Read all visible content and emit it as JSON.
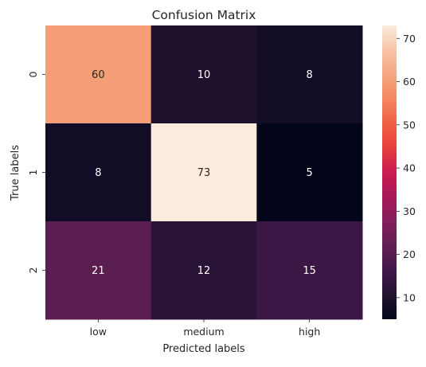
{
  "chart_data": {
    "type": "heatmap",
    "title": "Confusion Matrix",
    "xlabel": "Predicted labels",
    "ylabel": "True labels",
    "x_categories": [
      "low",
      "medium",
      "high"
    ],
    "y_categories": [
      "0",
      "1",
      "2"
    ],
    "values": [
      [
        60,
        10,
        8
      ],
      [
        8,
        73,
        5
      ],
      [
        21,
        12,
        15
      ]
    ],
    "colorbar": {
      "min": 5,
      "max": 73,
      "ticks": [
        10,
        20,
        30,
        40,
        50,
        60,
        70
      ]
    },
    "colormap_stops": [
      "#03051a",
      "#221331",
      "#41184a",
      "#611f53",
      "#841e5a",
      "#a8185a",
      "#cb1b4f",
      "#e83f3f",
      "#f06043",
      "#f4875e",
      "#f6a782",
      "#f7c4a5",
      "#faebdd"
    ],
    "grid": false,
    "legend": "colorbar-right"
  }
}
